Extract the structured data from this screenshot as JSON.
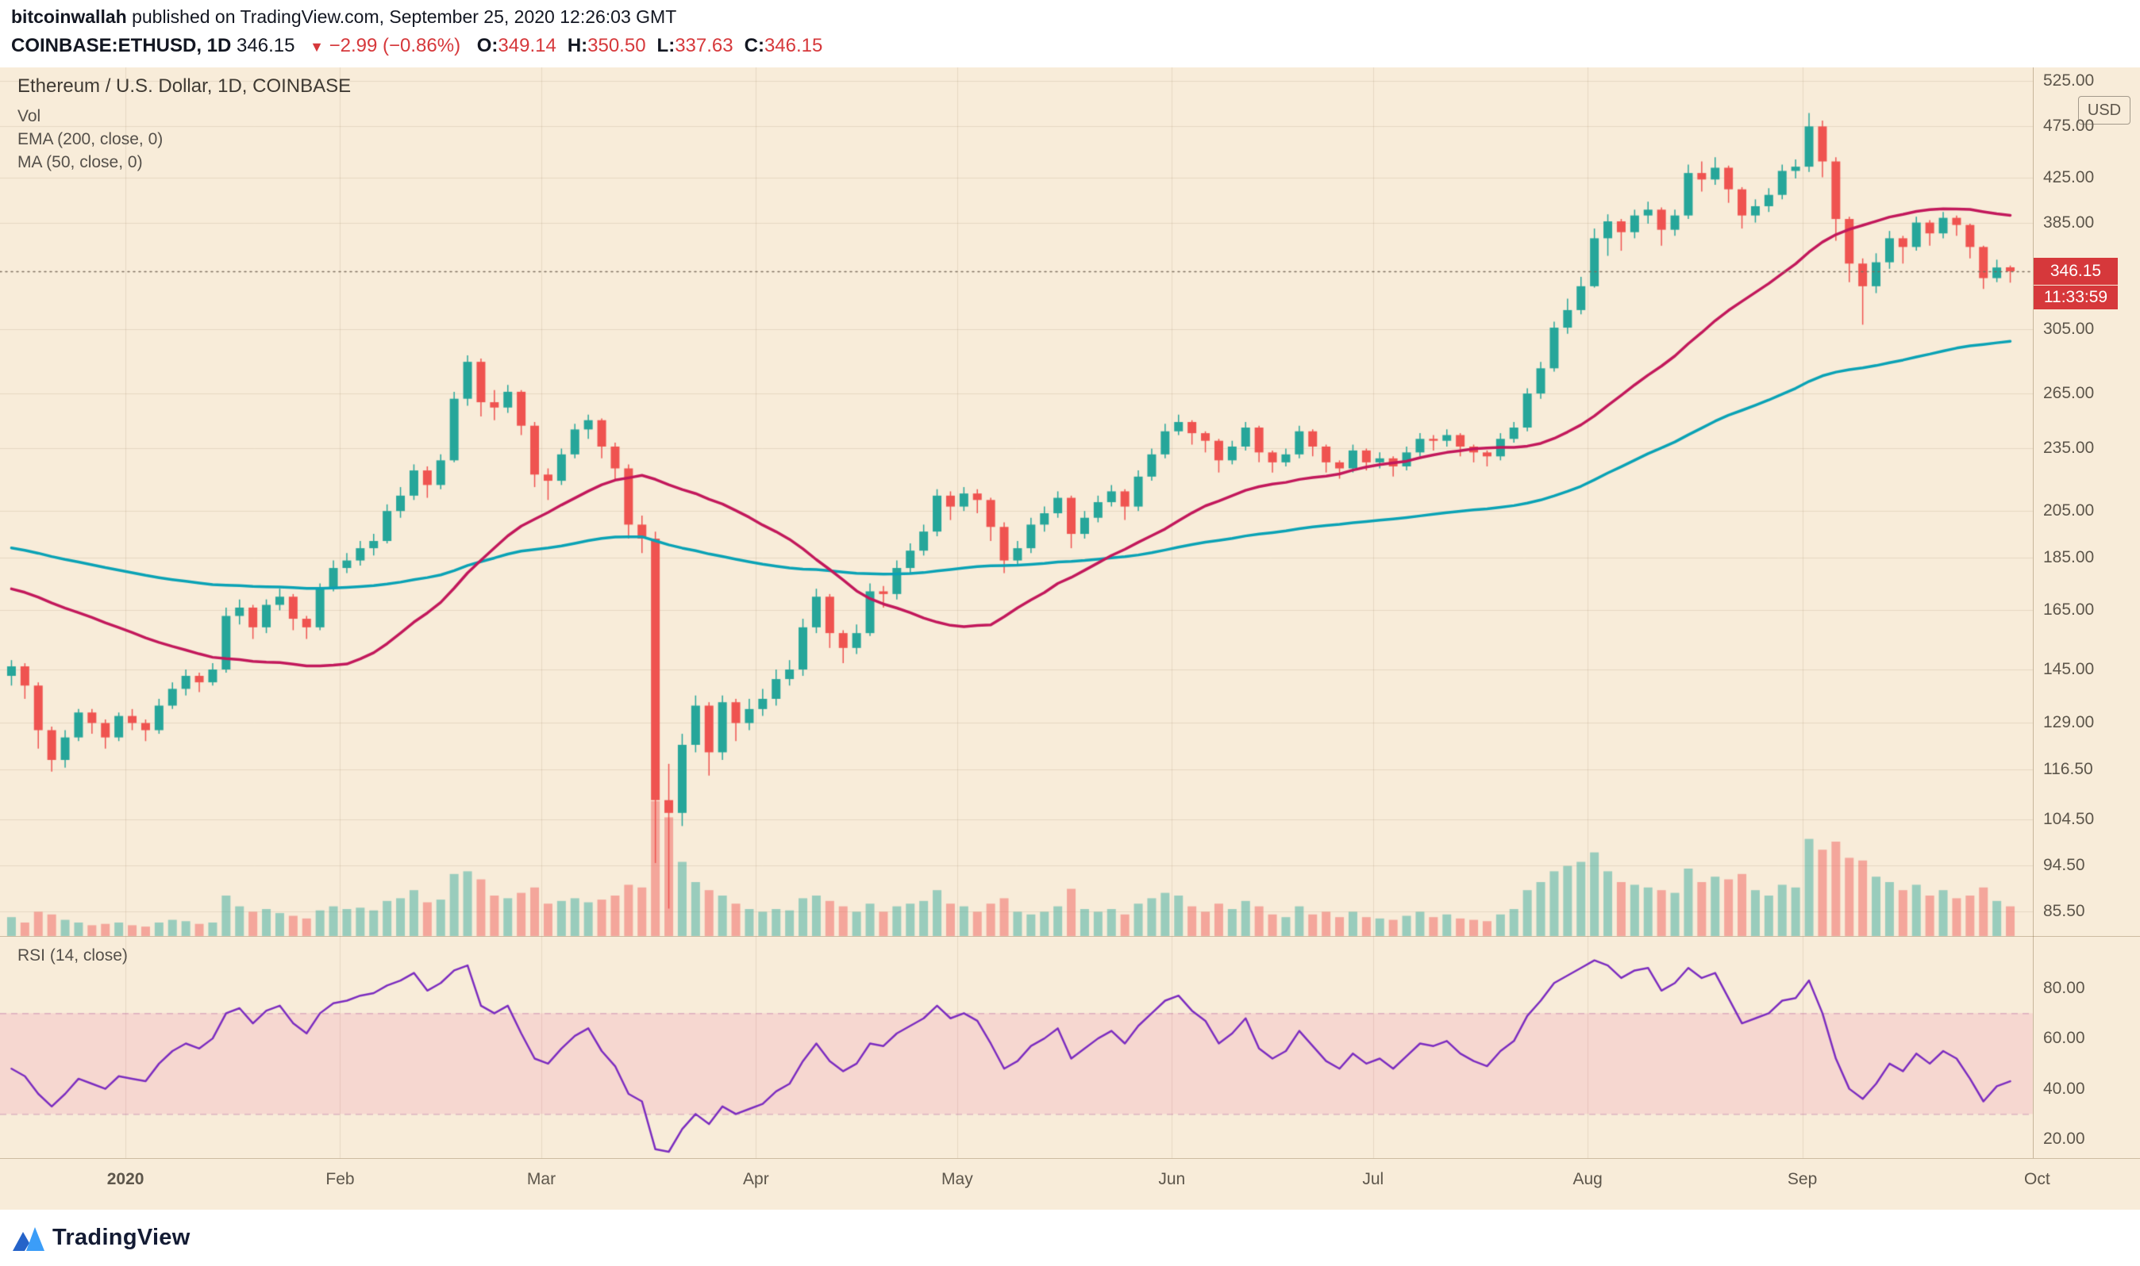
{
  "header": {
    "author": "bitcoinwallah",
    "published_text": " published on TradingView.com, September 25, 2020 12:26:03 GMT"
  },
  "symbol_bar": {
    "symbol": "COINBASE:ETHUSD, 1D",
    "last_price": "346.15",
    "change_icon": "▼",
    "change_text": "−2.99 (−0.86%)",
    "ohlc": [
      {
        "label": "O:",
        "value": "349.14"
      },
      {
        "label": "H:",
        "value": "350.50"
      },
      {
        "label": "L:",
        "value": "337.63"
      },
      {
        "label": "C:",
        "value": "346.15"
      }
    ]
  },
  "legend": {
    "title": "Ethereum / U.S. Dollar, 1D, COINBASE",
    "indicators": [
      "Vol",
      "EMA (200, close, 0)",
      "MA (50, close, 0)"
    ]
  },
  "price_axis": {
    "currency_button": "USD",
    "last_price_badge": "346.15",
    "countdown_badge": "11:33:59",
    "ticks": [
      {
        "price": 525,
        "label": "525.00"
      },
      {
        "price": 475,
        "label": "475.00"
      },
      {
        "price": 425,
        "label": "425.00"
      },
      {
        "price": 385,
        "label": "385.00"
      },
      {
        "price": 305,
        "label": "305.00"
      },
      {
        "price": 265,
        "label": "265.00"
      },
      {
        "price": 235,
        "label": "235.00"
      },
      {
        "price": 205,
        "label": "205.00"
      },
      {
        "price": 185,
        "label": "185.00"
      },
      {
        "price": 165,
        "label": "165.00"
      },
      {
        "price": 145,
        "label": "145.00"
      },
      {
        "price": 129,
        "label": "129.00"
      },
      {
        "price": 116.5,
        "label": "116.50"
      },
      {
        "price": 104.5,
        "label": "104.50"
      },
      {
        "price": 94.5,
        "label": "94.50"
      },
      {
        "price": 85.5,
        "label": "85.50"
      }
    ]
  },
  "time_axis": {
    "labels": [
      {
        "index": 9,
        "label": "2020",
        "bold": true
      },
      {
        "index": 25,
        "label": "Feb"
      },
      {
        "index": 40,
        "label": "Mar"
      },
      {
        "index": 56,
        "label": "Apr"
      },
      {
        "index": 71,
        "label": "May"
      },
      {
        "index": 87,
        "label": "Jun"
      },
      {
        "index": 102,
        "label": "Jul"
      },
      {
        "index": 118,
        "label": "Aug"
      },
      {
        "index": 134,
        "label": "Sep"
      },
      {
        "index": 151.5,
        "label": "Oct",
        "gridline": false
      }
    ]
  },
  "rsi_pane": {
    "label": "RSI (14, close)",
    "band": [
      30,
      70
    ],
    "ticks": [
      {
        "value": 80,
        "label": "80.00"
      },
      {
        "value": 60,
        "label": "60.00"
      },
      {
        "value": 40,
        "label": "40.00"
      },
      {
        "value": 20,
        "label": "20.00"
      }
    ]
  },
  "footer": {
    "brand": "TradingView"
  },
  "colors": {
    "background": "#f8ecd9",
    "up": "#26a69a",
    "down": "#ef5350",
    "vol_up": "rgba(38,166,154,0.45)",
    "vol_down": "rgba(239,83,80,0.45)",
    "ema200": "#0aa2b5",
    "ma50": "#c2185b",
    "rsi": "#7b2cbf",
    "rsi_band_fill": "rgba(233,30,140,0.10)",
    "rsi_band_edge": "rgba(170,90,150,0.55)",
    "red": "#d6383b",
    "grid": "rgba(128,100,58,0.14)",
    "dotted_price_line": "rgba(120,105,90,0.95)",
    "axis_text": "#5d564b"
  },
  "chart_data": {
    "type": "candlestick",
    "title": "Ethereum / U.S. Dollar, 1D, COINBASE",
    "symbol": "COINBASE:ETHUSD",
    "timeframe": "1D",
    "price_scale": "log",
    "x_range": "mid-Dec 2019 to Sep 25, 2020",
    "approx_days_per_candle": 1.9,
    "ylim": [
      81,
      540
    ],
    "candles": [
      [
        143,
        148,
        140,
        146
      ],
      [
        146,
        147,
        136,
        140
      ],
      [
        140,
        141,
        122,
        127
      ],
      [
        127,
        128,
        116,
        119
      ],
      [
        119,
        127,
        117,
        125
      ],
      [
        125,
        133,
        124,
        132
      ],
      [
        132,
        133,
        126,
        129
      ],
      [
        129,
        130,
        122,
        125
      ],
      [
        125,
        132,
        124,
        131
      ],
      [
        131,
        133,
        127,
        129
      ],
      [
        129,
        130,
        124,
        127
      ],
      [
        127,
        136,
        126,
        134
      ],
      [
        134,
        141,
        133,
        139
      ],
      [
        139,
        145,
        137,
        143
      ],
      [
        143,
        144,
        138,
        141
      ],
      [
        141,
        147,
        140,
        145
      ],
      [
        145,
        166,
        144,
        163
      ],
      [
        163,
        169,
        160,
        166
      ],
      [
        166,
        167,
        155,
        159
      ],
      [
        159,
        169,
        157,
        167
      ],
      [
        167,
        173,
        165,
        170
      ],
      [
        170,
        171,
        158,
        162
      ],
      [
        162,
        163,
        155,
        159
      ],
      [
        159,
        175,
        158,
        173
      ],
      [
        173,
        184,
        172,
        181
      ],
      [
        181,
        187,
        179,
        184
      ],
      [
        184,
        192,
        182,
        189
      ],
      [
        189,
        195,
        186,
        192
      ],
      [
        192,
        208,
        191,
        205
      ],
      [
        205,
        216,
        202,
        212
      ],
      [
        212,
        227,
        210,
        224
      ],
      [
        224,
        226,
        211,
        217
      ],
      [
        217,
        232,
        215,
        229
      ],
      [
        229,
        266,
        228,
        262
      ],
      [
        262,
        288,
        258,
        284
      ],
      [
        284,
        286,
        252,
        260
      ],
      [
        260,
        267,
        250,
        257
      ],
      [
        257,
        270,
        254,
        266
      ],
      [
        266,
        267,
        242,
        247
      ],
      [
        247,
        249,
        216,
        222
      ],
      [
        222,
        225,
        210,
        219
      ],
      [
        219,
        235,
        217,
        232
      ],
      [
        232,
        248,
        230,
        245
      ],
      [
        245,
        253,
        240,
        250
      ],
      [
        250,
        251,
        230,
        236
      ],
      [
        236,
        238,
        219,
        225
      ],
      [
        225,
        227,
        193,
        199
      ],
      [
        199,
        203,
        187,
        193
      ],
      [
        193,
        196,
        95,
        109
      ],
      [
        109,
        118,
        86,
        106
      ],
      [
        106,
        126,
        103,
        123
      ],
      [
        123,
        137,
        121,
        134
      ],
      [
        134,
        135,
        115,
        121
      ],
      [
        121,
        137,
        119,
        135
      ],
      [
        135,
        136,
        124,
        129
      ],
      [
        129,
        136,
        127,
        133
      ],
      [
        133,
        139,
        131,
        136
      ],
      [
        136,
        145,
        134,
        142
      ],
      [
        142,
        148,
        140,
        145
      ],
      [
        145,
        162,
        143,
        159
      ],
      [
        159,
        173,
        157,
        170
      ],
      [
        170,
        171,
        152,
        157
      ],
      [
        157,
        158,
        147,
        152
      ],
      [
        152,
        160,
        150,
        157
      ],
      [
        157,
        175,
        156,
        172
      ],
      [
        172,
        174,
        166,
        171
      ],
      [
        171,
        184,
        169,
        181
      ],
      [
        181,
        191,
        179,
        188
      ],
      [
        188,
        199,
        186,
        196
      ],
      [
        196,
        215,
        194,
        212
      ],
      [
        212,
        214,
        201,
        207
      ],
      [
        207,
        216,
        205,
        213
      ],
      [
        213,
        215,
        204,
        210
      ],
      [
        210,
        211,
        192,
        198
      ],
      [
        198,
        200,
        179,
        184
      ],
      [
        184,
        192,
        182,
        189
      ],
      [
        189,
        202,
        187,
        199
      ],
      [
        199,
        207,
        196,
        204
      ],
      [
        204,
        214,
        202,
        211
      ],
      [
        211,
        212,
        189,
        195
      ],
      [
        195,
        205,
        193,
        202
      ],
      [
        202,
        212,
        200,
        209
      ],
      [
        209,
        217,
        207,
        214
      ],
      [
        214,
        215,
        201,
        207
      ],
      [
        207,
        224,
        205,
        221
      ],
      [
        221,
        235,
        219,
        232
      ],
      [
        232,
        248,
        230,
        244
      ],
      [
        244,
        253,
        242,
        249
      ],
      [
        249,
        250,
        237,
        243
      ],
      [
        243,
        244,
        233,
        239
      ],
      [
        239,
        240,
        223,
        229
      ],
      [
        229,
        239,
        227,
        236
      ],
      [
        236,
        249,
        234,
        246
      ],
      [
        246,
        247,
        228,
        233
      ],
      [
        233,
        234,
        223,
        228
      ],
      [
        228,
        235,
        226,
        232
      ],
      [
        232,
        247,
        230,
        244
      ],
      [
        244,
        245,
        231,
        236
      ],
      [
        236,
        237,
        223,
        228
      ],
      [
        228,
        229,
        220,
        225
      ],
      [
        225,
        237,
        223,
        234
      ],
      [
        234,
        235,
        224,
        228
      ],
      [
        228,
        233,
        225,
        230
      ],
      [
        230,
        231,
        221,
        226
      ],
      [
        226,
        236,
        224,
        233
      ],
      [
        233,
        243,
        231,
        240
      ],
      [
        240,
        242,
        234,
        239
      ],
      [
        239,
        245,
        236,
        242
      ],
      [
        242,
        243,
        231,
        236
      ],
      [
        236,
        237,
        228,
        233
      ],
      [
        233,
        234,
        226,
        231
      ],
      [
        231,
        243,
        229,
        240
      ],
      [
        240,
        249,
        238,
        246
      ],
      [
        246,
        268,
        244,
        265
      ],
      [
        265,
        284,
        262,
        280
      ],
      [
        280,
        310,
        278,
        306
      ],
      [
        306,
        326,
        302,
        318
      ],
      [
        318,
        342,
        315,
        335
      ],
      [
        335,
        380,
        334,
        372
      ],
      [
        372,
        392,
        358,
        386
      ],
      [
        386,
        388,
        362,
        377
      ],
      [
        377,
        396,
        372,
        391
      ],
      [
        391,
        403,
        384,
        396
      ],
      [
        396,
        398,
        366,
        379
      ],
      [
        379,
        396,
        374,
        391
      ],
      [
        391,
        437,
        388,
        429
      ],
      [
        429,
        440,
        412,
        423
      ],
      [
        423,
        444,
        418,
        434
      ],
      [
        434,
        436,
        402,
        414
      ],
      [
        414,
        416,
        380,
        391
      ],
      [
        391,
        405,
        385,
        399
      ],
      [
        399,
        415,
        394,
        409
      ],
      [
        409,
        437,
        405,
        431
      ],
      [
        431,
        442,
        424,
        435
      ],
      [
        435,
        489,
        430,
        475
      ],
      [
        475,
        481,
        425,
        440
      ],
      [
        440,
        444,
        370,
        388
      ],
      [
        388,
        390,
        338,
        352
      ],
      [
        352,
        356,
        308,
        335
      ],
      [
        335,
        360,
        330,
        353
      ],
      [
        353,
        378,
        348,
        372
      ],
      [
        372,
        374,
        352,
        365
      ],
      [
        365,
        390,
        362,
        385
      ],
      [
        385,
        387,
        366,
        376
      ],
      [
        376,
        394,
        372,
        389
      ],
      [
        389,
        391,
        374,
        383
      ],
      [
        383,
        384,
        356,
        365
      ],
      [
        365,
        366,
        333,
        341
      ],
      [
        341,
        355,
        338,
        349
      ],
      [
        349.14,
        350.5,
        337.63,
        346.15
      ]
    ],
    "volumes": [
      14,
      10,
      18,
      16,
      12,
      10,
      8,
      9,
      10,
      8,
      7,
      10,
      12,
      11,
      9,
      10,
      30,
      22,
      18,
      20,
      17,
      15,
      13,
      19,
      22,
      20,
      21,
      19,
      26,
      28,
      34,
      25,
      27,
      46,
      48,
      42,
      30,
      28,
      32,
      36,
      24,
      26,
      28,
      25,
      27,
      30,
      38,
      36,
      100,
      88,
      55,
      40,
      34,
      30,
      24,
      20,
      18,
      20,
      19,
      28,
      30,
      26,
      22,
      18,
      24,
      18,
      22,
      24,
      26,
      34,
      24,
      22,
      18,
      24,
      28,
      18,
      16,
      18,
      22,
      35,
      20,
      18,
      20,
      16,
      24,
      28,
      32,
      30,
      22,
      18,
      24,
      20,
      26,
      22,
      16,
      14,
      22,
      16,
      18,
      14,
      18,
      14,
      13,
      12,
      15,
      18,
      14,
      16,
      13,
      12,
      11,
      16,
      20,
      34,
      40,
      48,
      52,
      55,
      62,
      48,
      40,
      38,
      36,
      34,
      32,
      50,
      40,
      44,
      42,
      46,
      34,
      30,
      38,
      36,
      72,
      64,
      70,
      58,
      56,
      44,
      40,
      34,
      38,
      30,
      34,
      28,
      30,
      36,
      26,
      22
    ],
    "indicators": {
      "ema200": {
        "type": "EMA",
        "length": 200,
        "source": "close",
        "offset": 0,
        "alpha": 0.0198,
        "seed": 190,
        "color": "#0aa2b5"
      },
      "ma50": {
        "type": "SMA",
        "length": 50,
        "source": "close",
        "offset": 0,
        "window_candles": 26,
        "seed": 174,
        "color": "#c2185b"
      },
      "rsi": {
        "type": "RSI",
        "length": 14,
        "source": "close",
        "color": "#7b2cbf",
        "values": [
          48,
          45,
          38,
          33,
          38,
          44,
          42,
          40,
          45,
          44,
          43,
          50,
          55,
          58,
          56,
          60,
          70,
          72,
          66,
          71,
          73,
          66,
          62,
          70,
          74,
          75,
          77,
          78,
          81,
          83,
          86,
          79,
          82,
          87,
          89,
          73,
          70,
          73,
          62,
          52,
          50,
          56,
          61,
          64,
          55,
          49,
          38,
          35,
          16,
          15,
          24,
          30,
          26,
          33,
          30,
          32,
          34,
          39,
          42,
          51,
          58,
          51,
          47,
          50,
          58,
          57,
          62,
          65,
          68,
          73,
          68,
          70,
          67,
          58,
          48,
          51,
          57,
          60,
          64,
          52,
          56,
          60,
          63,
          58,
          65,
          70,
          75,
          77,
          71,
          67,
          58,
          62,
          68,
          56,
          52,
          55,
          63,
          57,
          51,
          48,
          54,
          50,
          52,
          48,
          53,
          58,
          57,
          59,
          54,
          51,
          49,
          55,
          59,
          69,
          75,
          82,
          85,
          88,
          91,
          89,
          84,
          87,
          88,
          79,
          82,
          88,
          84,
          86,
          76,
          66,
          68,
          70,
          75,
          76,
          83,
          70,
          52,
          40,
          36,
          42,
          50,
          47,
          54,
          50,
          55,
          52,
          44,
          35,
          41,
          43
        ]
      }
    },
    "last": {
      "open": 349.14,
      "high": 350.5,
      "low": 337.63,
      "close": 346.15
    }
  }
}
